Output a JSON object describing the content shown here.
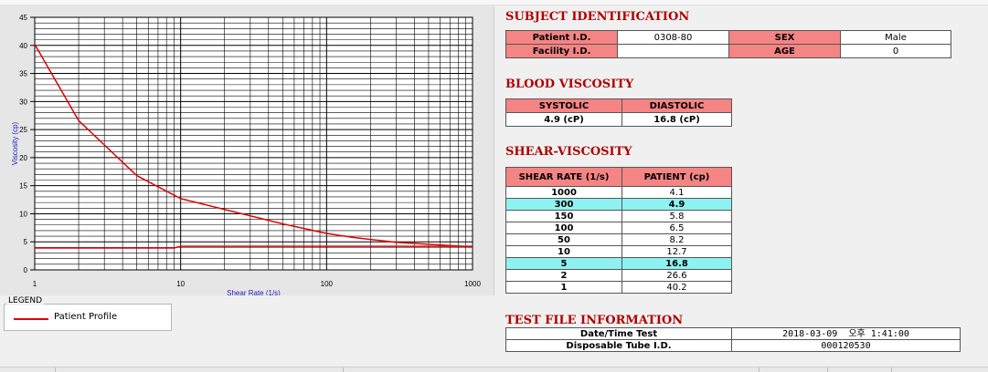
{
  "chart_data": {
    "type": "line",
    "xlabel": "Shear Rate (1/s)",
    "ylabel": "Viscosity (cp)",
    "xscale": "log",
    "xlim": [
      1,
      1000
    ],
    "ylim": [
      0,
      45
    ],
    "xticks": [
      1,
      10,
      100,
      1000
    ],
    "yticks": [
      0,
      5,
      10,
      15,
      20,
      25,
      30,
      35,
      40,
      45
    ],
    "grid": true,
    "series": [
      {
        "name": "Patient Profile",
        "color": "#e00000",
        "x": [
          1,
          2,
          5,
          10,
          50,
          100,
          150,
          300,
          1000
        ],
        "y": [
          40.2,
          26.6,
          16.8,
          12.7,
          8.2,
          6.5,
          5.8,
          4.9,
          4.1
        ]
      },
      {
        "color": "#e00000",
        "x": [
          1,
          9,
          10,
          1000
        ],
        "y": [
          3.9,
          3.9,
          4.2,
          4.2
        ]
      }
    ]
  },
  "legend": {
    "title": "LEGEND",
    "label": "Patient Profile"
  },
  "subject": {
    "title": "SUBJECT IDENTIFICATION",
    "patient_id_label": "Patient I.D.",
    "patient_id": "0308-80",
    "facility_id_label": "Facility I.D.",
    "facility_id": "",
    "sex_label": "SEX",
    "sex": "Male",
    "age_label": "AGE",
    "age": "0"
  },
  "blood": {
    "title": "BLOOD VISCOSITY",
    "systolic_label": "SYSTOLIC",
    "diastolic_label": "DIASTOLIC",
    "systolic": "4.9 (cP)",
    "diastolic": "16.8 (cP)"
  },
  "shear": {
    "title": "SHEAR-VISCOSITY",
    "col1": "SHEAR RATE (1/s)",
    "col2": "PATIENT (cp)",
    "rows": [
      {
        "rate": "1000",
        "val": "4.1"
      },
      {
        "rate": "300",
        "val": "4.9"
      },
      {
        "rate": "150",
        "val": "5.8"
      },
      {
        "rate": "100",
        "val": "6.5"
      },
      {
        "rate": "50",
        "val": "8.2"
      },
      {
        "rate": "10",
        "val": "12.7"
      },
      {
        "rate": "5",
        "val": "16.8"
      },
      {
        "rate": "2",
        "val": "26.6"
      },
      {
        "rate": "1",
        "val": "40.2"
      }
    ]
  },
  "testfile": {
    "title": "TEST FILE INFORMATION",
    "date_label": "Date/Time Test",
    "date": "2018-03-09",
    "time": "오후 1:41:00",
    "tube_label": "Disposable Tube I.D.",
    "tube": "000120530"
  }
}
